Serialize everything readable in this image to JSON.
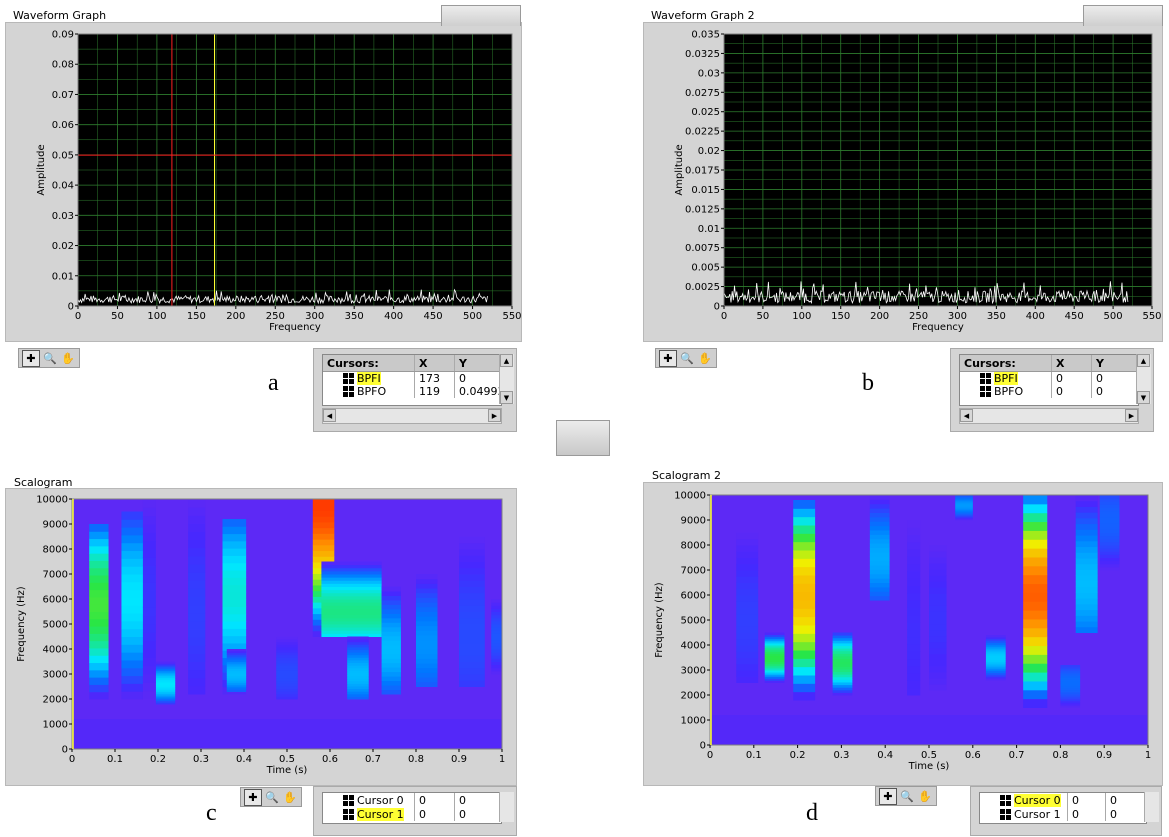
{
  "palette_icons": [
    "crosshair-icon",
    "zoom-icon",
    "pan-hand-icon"
  ],
  "graphs": [
    {
      "title": "Waveform Graph",
      "caption": "a",
      "chart_data": {
        "type": "line",
        "xlabel": "Frequency",
        "ylabel": "Amplitude",
        "xlim": [
          0,
          550
        ],
        "ylim": [
          0,
          0.09
        ],
        "x_ticks": [
          "0",
          "50",
          "100",
          "150",
          "200",
          "250",
          "300",
          "350",
          "400",
          "450",
          "500",
          "550"
        ],
        "y_ticks": [
          "0",
          "0.01",
          "0.02",
          "0.03",
          "0.04",
          "0.05",
          "0.06",
          "0.07",
          "0.08",
          "0.09"
        ],
        "grid": true,
        "plot_background": "#000000",
        "grid_color": "#2e7d2e",
        "trace_color": "#ffffff",
        "noise_range": [
          0.001,
          0.0055
        ],
        "noise_xmax": 520,
        "cursors": [
          {
            "name": "BPFI",
            "x": 173,
            "y": 0,
            "color": "#ffff33",
            "vertical_only": true
          },
          {
            "name": "BPFO",
            "x": 119,
            "y": 0.04993,
            "color": "#ff2020",
            "vertical_only": false
          }
        ]
      },
      "cursor_table": {
        "header": {
          "name": "Cursors:",
          "x": "X",
          "y": "Y"
        },
        "rows": [
          {
            "name": "BPFI",
            "x": "173",
            "y": "0",
            "highlight": true
          },
          {
            "name": "BPFO",
            "x": "119",
            "y": "0.04993",
            "highlight": false
          }
        ]
      }
    },
    {
      "title": "Waveform Graph 2",
      "caption": "b",
      "chart_data": {
        "type": "line",
        "xlabel": "Frequency",
        "ylabel": "Amplitude",
        "xlim": [
          0,
          550
        ],
        "ylim": [
          0,
          0.035
        ],
        "x_ticks": [
          "0",
          "50",
          "100",
          "150",
          "200",
          "250",
          "300",
          "350",
          "400",
          "450",
          "500",
          "550"
        ],
        "y_ticks": [
          "0",
          "0.0025",
          "0.005",
          "0.0075",
          "0.01",
          "0.0125",
          "0.015",
          "0.0175",
          "0.02",
          "0.0225",
          "0.025",
          "0.0275",
          "0.03",
          "0.0325",
          "0.035"
        ],
        "grid": true,
        "plot_background": "#000000",
        "grid_color": "#2e7d2e",
        "trace_color": "#ffffff",
        "noise_range": [
          0.0004,
          0.0032
        ],
        "noise_xmax": 520,
        "cursors": [
          {
            "name": "BPFI",
            "x": 0,
            "y": 0,
            "color": "#ffff33",
            "vertical_only": true
          },
          {
            "name": "BPFO",
            "x": 0,
            "y": 0,
            "color": "#ff2020",
            "vertical_only": true
          }
        ]
      },
      "cursor_table": {
        "header": {
          "name": "Cursors:",
          "x": "X",
          "y": "Y"
        },
        "rows": [
          {
            "name": "BPFI",
            "x": "0",
            "y": "0",
            "highlight": true
          },
          {
            "name": "BPFO",
            "x": "0",
            "y": "0",
            "highlight": false
          }
        ]
      }
    },
    {
      "title": "Scalogram",
      "caption": "c",
      "chart_data": {
        "type": "heatmap",
        "xlabel": "Time (s)",
        "ylabel": "Frequency (Hz)",
        "xlim": [
          0,
          1
        ],
        "ylim": [
          0,
          10000
        ],
        "x_ticks": [
          "0",
          "0.1",
          "0.2",
          "0.3",
          "0.4",
          "0.5",
          "0.6",
          "0.7",
          "0.8",
          "0.9",
          "1"
        ],
        "y_ticks": [
          "0",
          "1000",
          "2000",
          "3000",
          "4000",
          "5000",
          "6000",
          "7000",
          "8000",
          "9000",
          "10000"
        ],
        "base_intensity": 0.12,
        "columns": [
          {
            "t0": 0.04,
            "t1": 0.085,
            "f0": 2000,
            "f1": 9000,
            "peak_f": 5800,
            "peak": 0.62
          },
          {
            "t0": 0.115,
            "t1": 0.165,
            "f0": 2000,
            "f1": 9500,
            "peak_f": 6000,
            "peak": 0.45
          },
          {
            "t0": 0.195,
            "t1": 0.24,
            "f0": 1800,
            "f1": 3500,
            "peak_f": 2600,
            "peak": 0.45
          },
          {
            "t0": 0.35,
            "t1": 0.405,
            "f0": 2200,
            "f1": 9200,
            "peak_f": 6200,
            "peak": 0.48
          },
          {
            "t0": 0.36,
            "t1": 0.405,
            "f0": 2300,
            "f1": 4000,
            "peak_f": 3000,
            "peak": 0.4
          },
          {
            "t0": 0.475,
            "t1": 0.525,
            "f0": 2000,
            "f1": 4500,
            "peak_f": 3000,
            "peak": 0.24
          },
          {
            "t0": 0.56,
            "t1": 0.61,
            "f0": 4500,
            "f1": 10000,
            "peak_f": 9800,
            "peak": 0.95
          },
          {
            "t0": 0.58,
            "t1": 0.72,
            "f0": 4500,
            "f1": 7500,
            "peak_f": 5500,
            "peak": 0.55
          },
          {
            "t0": 0.64,
            "t1": 0.69,
            "f0": 2000,
            "f1": 4500,
            "peak_f": 3000,
            "peak": 0.4
          },
          {
            "t0": 0.72,
            "t1": 0.765,
            "f0": 2200,
            "f1": 6500,
            "peak_f": 4000,
            "peak": 0.4
          },
          {
            "t0": 0.8,
            "t1": 0.85,
            "f0": 2500,
            "f1": 7000,
            "peak_f": 4200,
            "peak": 0.35
          },
          {
            "t0": 0.9,
            "t1": 0.96,
            "f0": 2500,
            "f1": 8500,
            "peak_f": 4500,
            "peak": 0.24
          },
          {
            "t0": 0.975,
            "t1": 1.0,
            "f0": 3000,
            "f1": 6000,
            "peak_f": 4500,
            "peak": 0.26
          },
          {
            "t0": 0.165,
            "t1": 0.195,
            "f0": 2000,
            "f1": 10000,
            "peak_f": 6000,
            "peak": 0.2
          },
          {
            "t0": 0.27,
            "t1": 0.31,
            "f0": 2200,
            "f1": 10000,
            "peak_f": 5500,
            "peak": 0.22
          }
        ]
      },
      "cursor_table": {
        "rows": [
          {
            "name": "Cursor 0",
            "x": "0",
            "y": "0",
            "highlight": false
          },
          {
            "name": "Cursor 1",
            "x": "0",
            "y": "0",
            "highlight": true
          }
        ]
      }
    },
    {
      "title": "Scalogram 2",
      "caption": "d",
      "chart_data": {
        "type": "heatmap",
        "xlabel": "Time (s)",
        "ylabel": "Frequency (Hz)",
        "xlim": [
          0,
          1
        ],
        "ylim": [
          0,
          10000
        ],
        "x_ticks": [
          "0",
          "0.1",
          "0.2",
          "0.3",
          "0.4",
          "0.5",
          "0.6",
          "0.7",
          "0.8",
          "0.9",
          "1"
        ],
        "y_ticks": [
          "0",
          "1000",
          "2000",
          "3000",
          "4000",
          "5000",
          "6000",
          "7000",
          "8000",
          "9000",
          "10000"
        ],
        "base_intensity": 0.12,
        "columns": [
          {
            "t0": 0.06,
            "t1": 0.11,
            "f0": 2500,
            "f1": 8500,
            "peak_f": 5000,
            "peak": 0.22
          },
          {
            "t0": 0.125,
            "t1": 0.17,
            "f0": 2500,
            "f1": 4500,
            "peak_f": 3500,
            "peak": 0.6
          },
          {
            "t0": 0.19,
            "t1": 0.24,
            "f0": 1800,
            "f1": 9800,
            "peak_f": 6000,
            "peak": 0.82
          },
          {
            "t0": 0.28,
            "t1": 0.325,
            "f0": 2000,
            "f1": 4500,
            "peak_f": 3300,
            "peak": 0.58
          },
          {
            "t0": 0.365,
            "t1": 0.41,
            "f0": 5800,
            "f1": 10000,
            "peak_f": 7500,
            "peak": 0.38
          },
          {
            "t0": 0.56,
            "t1": 0.6,
            "f0": 9000,
            "f1": 10000,
            "peak_f": 9600,
            "peak": 0.36
          },
          {
            "t0": 0.63,
            "t1": 0.675,
            "f0": 2600,
            "f1": 4400,
            "peak_f": 3500,
            "peak": 0.42
          },
          {
            "t0": 0.715,
            "t1": 0.77,
            "f0": 1500,
            "f1": 10000,
            "peak_f": 6000,
            "peak": 0.92
          },
          {
            "t0": 0.8,
            "t1": 0.845,
            "f0": 1500,
            "f1": 3200,
            "peak_f": 2500,
            "peak": 0.3
          },
          {
            "t0": 0.835,
            "t1": 0.885,
            "f0": 4500,
            "f1": 10000,
            "peak_f": 6500,
            "peak": 0.4
          },
          {
            "t0": 0.89,
            "t1": 0.935,
            "f0": 7000,
            "f1": 10000,
            "peak_f": 9000,
            "peak": 0.28
          },
          {
            "t0": 0.5,
            "t1": 0.54,
            "f0": 2200,
            "f1": 8000,
            "peak_f": 5000,
            "peak": 0.2
          },
          {
            "t0": 0.45,
            "t1": 0.48,
            "f0": 2000,
            "f1": 9000,
            "peak_f": 4500,
            "peak": 0.19
          }
        ]
      },
      "cursor_table": {
        "rows": [
          {
            "name": "Cursor 0",
            "x": "0",
            "y": "0",
            "highlight": true
          },
          {
            "name": "Cursor 1",
            "x": "0",
            "y": "0",
            "highlight": false
          }
        ]
      }
    }
  ]
}
